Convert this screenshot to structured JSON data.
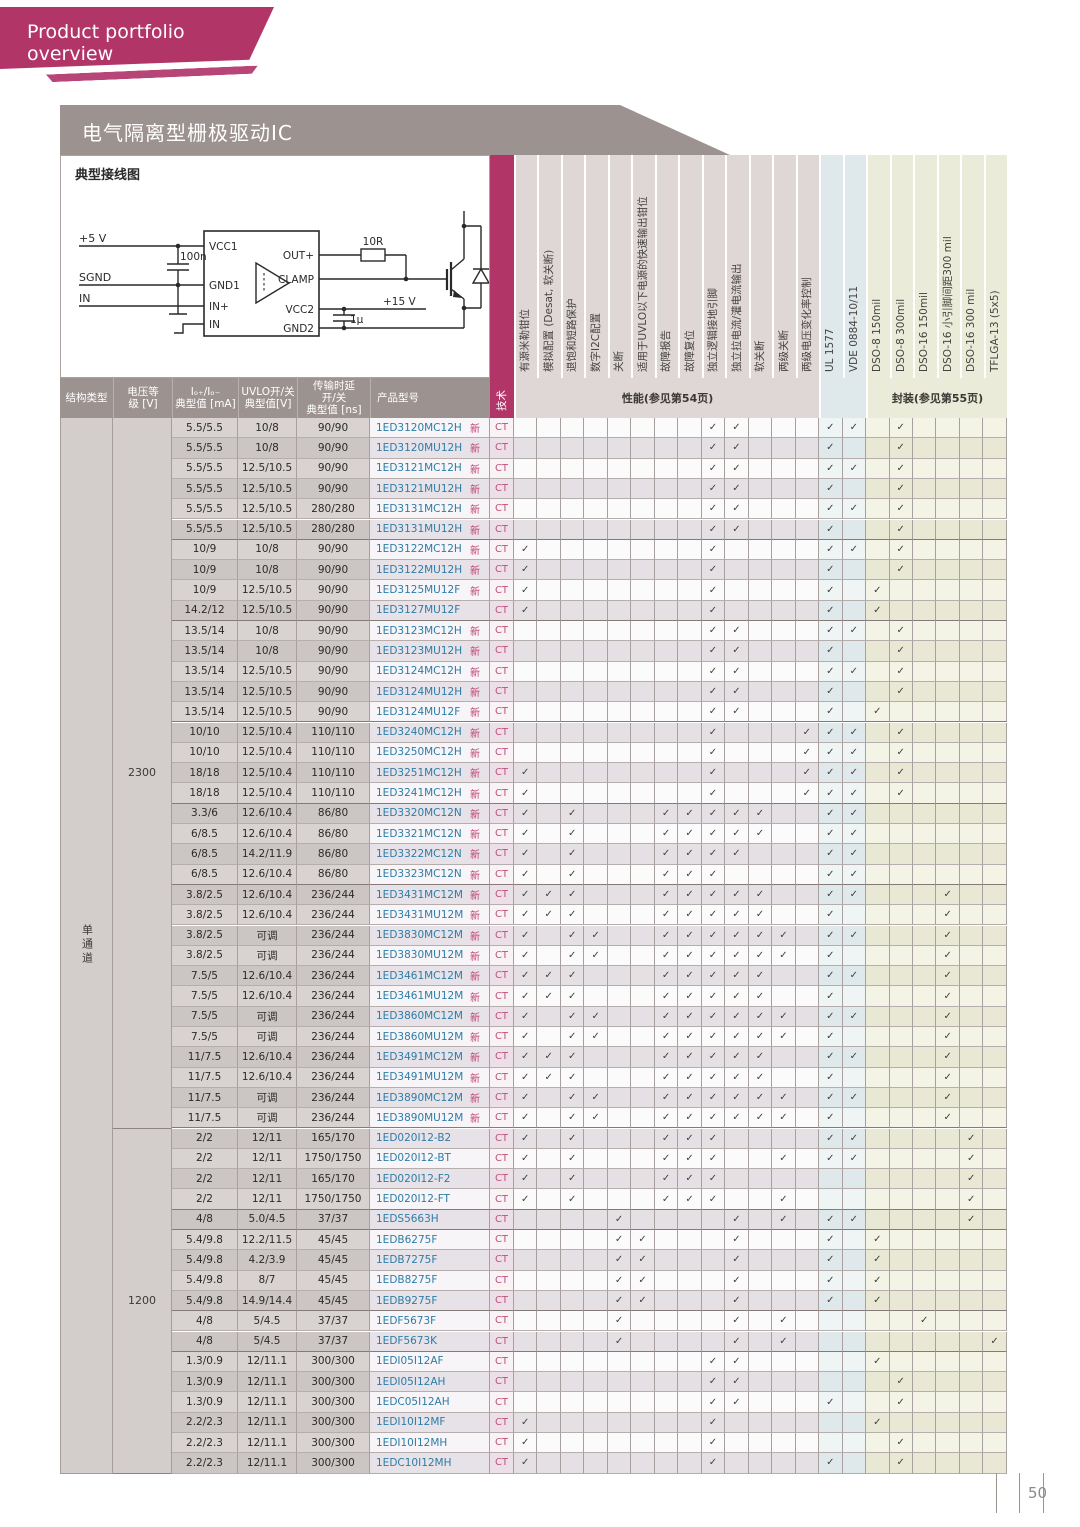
{
  "page": {
    "number": "50"
  },
  "banner": {
    "title": "Product portfolio overview"
  },
  "section": {
    "title": "电气隔离型栅极驱动IC"
  },
  "colors": {
    "brand_magenta": "#b23568",
    "header_gray": "#9c9290",
    "product_link_blue": "#2e7ca6",
    "new_badge": "#c2406f",
    "cert_header_blue": "#dfe9eb",
    "package_header_yellow": "#ebebd9"
  },
  "diagram": {
    "title": "典型接线图",
    "labels": {
      "supply5": "+5 V",
      "sgnd": "SGND",
      "input": "IN",
      "c1": "100n",
      "vcc1": "VCC1",
      "gnd1": "GND1",
      "inp": "IN+",
      "inn": "IN",
      "outp": "OUT+",
      "clamp": "CLAMP",
      "vcc2": "VCC2",
      "gnd2": "GND2",
      "r1": "10R",
      "supply15": "+15 V",
      "c2": "1µ"
    }
  },
  "table": {
    "left_headers": [
      {
        "lines": [
          "结构类型"
        ]
      },
      {
        "lines": [
          "电压等",
          "级 [V]"
        ]
      },
      {
        "lines": [
          "Iₒ₊/Iₒ₋",
          "典型值 [mA]"
        ]
      },
      {
        "lines": [
          "UVLO开/关",
          "典型值[V]"
        ]
      },
      {
        "lines": [
          "传输时延",
          "开/关",
          "典型值 [ns]"
        ]
      },
      {
        "lines": [
          "产品型号"
        ]
      }
    ],
    "tech_header": "技术",
    "tech_value": "CT",
    "new_label": "新",
    "perf_band": "性能(参见第54页)",
    "pkg_band": "封装(参见第55页)",
    "structure_group": "单通道",
    "voltage_groups": [
      {
        "label": "2300",
        "rows": 35
      },
      {
        "label": "1200",
        "rows": 17
      }
    ],
    "columns": [
      {
        "label": "有源米勒钳位",
        "group": "perf"
      },
      {
        "label": "模拟配置 (Desat, 软关断)",
        "group": "perf"
      },
      {
        "label": "退饱和短路保护",
        "group": "perf"
      },
      {
        "label": "数字I2C配置",
        "group": "perf"
      },
      {
        "label": "关断",
        "group": "perf"
      },
      {
        "label": "适用于UVLO以下电源的快速输出钳位",
        "group": "perf"
      },
      {
        "label": "故障报告",
        "group": "perf"
      },
      {
        "label": "故障复位",
        "group": "perf"
      },
      {
        "label": "独立逻辑接地引脚",
        "group": "perf"
      },
      {
        "label": "独立拉电流/灌电流输出",
        "group": "perf"
      },
      {
        "label": "软关断",
        "group": "perf"
      },
      {
        "label": "两级关断",
        "group": "perf"
      },
      {
        "label": "两级电压变化率控制",
        "group": "perf"
      },
      {
        "label": "UL 1577",
        "group": "cert"
      },
      {
        "label": "VDE 0884-10/11",
        "group": "cert"
      },
      {
        "label": "DSO-8 150mil",
        "group": "pkg"
      },
      {
        "label": "DSO-8 300mil",
        "group": "pkg"
      },
      {
        "label": "DSO-16 150mil",
        "group": "pkg"
      },
      {
        "label": "DSO-16 小引脚间距300 mil",
        "group": "pkg"
      },
      {
        "label": "DSO-16 300 mil",
        "group": "pkg"
      },
      {
        "label": "TFLGA-13 (5x5)",
        "group": "pkg"
      }
    ],
    "rows": [
      {
        "io": "5.5/5.5",
        "uvlo": "10/8",
        "td": "90/90",
        "part": "1ED3120MC12H",
        "new": true,
        "chk": [
          9,
          10,
          14,
          15,
          17
        ]
      },
      {
        "io": "5.5/5.5",
        "uvlo": "10/8",
        "td": "90/90",
        "part": "1ED3120MU12H",
        "new": true,
        "chk": [
          9,
          10,
          14,
          17
        ]
      },
      {
        "io": "5.5/5.5",
        "uvlo": "12.5/10.5",
        "td": "90/90",
        "part": "1ED3121MC12H",
        "new": true,
        "chk": [
          9,
          10,
          14,
          15,
          17
        ]
      },
      {
        "io": "5.5/5.5",
        "uvlo": "12.5/10.5",
        "td": "90/90",
        "part": "1ED3121MU12H",
        "new": true,
        "chk": [
          9,
          10,
          14,
          17
        ]
      },
      {
        "io": "5.5/5.5",
        "uvlo": "12.5/10.5",
        "td": "280/280",
        "part": "1ED3131MC12H",
        "new": true,
        "chk": [
          9,
          10,
          14,
          15,
          17
        ]
      },
      {
        "io": "5.5/5.5",
        "uvlo": "12.5/10.5",
        "td": "280/280",
        "part": "1ED3131MU12H",
        "new": true,
        "chk": [
          9,
          10,
          14,
          17
        ]
      },
      {
        "io": "10/9",
        "uvlo": "10/8",
        "td": "90/90",
        "part": "1ED3122MC12H",
        "new": true,
        "chk": [
          1,
          9,
          14,
          15,
          17
        ]
      },
      {
        "io": "10/9",
        "uvlo": "10/8",
        "td": "90/90",
        "part": "1ED3122MU12H",
        "new": true,
        "chk": [
          1,
          9,
          14,
          17
        ]
      },
      {
        "io": "10/9",
        "uvlo": "12.5/10.5",
        "td": "90/90",
        "part": "1ED3125MU12F",
        "new": true,
        "chk": [
          1,
          9,
          14,
          16
        ]
      },
      {
        "io": "14.2/12",
        "uvlo": "12.5/10.5",
        "td": "90/90",
        "part": "1ED3127MU12F",
        "new": false,
        "chk": [
          1,
          9,
          14,
          16
        ]
      },
      {
        "io": "13.5/14",
        "uvlo": "10/8",
        "td": "90/90",
        "part": "1ED3123MC12H",
        "new": true,
        "chk": [
          9,
          10,
          14,
          15,
          17
        ]
      },
      {
        "io": "13.5/14",
        "uvlo": "10/8",
        "td": "90/90",
        "part": "1ED3123MU12H",
        "new": true,
        "chk": [
          9,
          10,
          14,
          17
        ]
      },
      {
        "io": "13.5/14",
        "uvlo": "12.5/10.5",
        "td": "90/90",
        "part": "1ED3124MC12H",
        "new": true,
        "chk": [
          9,
          10,
          14,
          15,
          17
        ]
      },
      {
        "io": "13.5/14",
        "uvlo": "12.5/10.5",
        "td": "90/90",
        "part": "1ED3124MU12H",
        "new": true,
        "chk": [
          9,
          10,
          14,
          17
        ]
      },
      {
        "io": "13.5/14",
        "uvlo": "12.5/10.5",
        "td": "90/90",
        "part": "1ED3124MU12F",
        "new": true,
        "chk": [
          9,
          10,
          14,
          16
        ]
      },
      {
        "io": "10/10",
        "uvlo": "12.5/10.4",
        "td": "110/110",
        "part": "1ED3240MC12H",
        "new": true,
        "chk": [
          9,
          13,
          14,
          15,
          17
        ]
      },
      {
        "io": "10/10",
        "uvlo": "12.5/10.4",
        "td": "110/110",
        "part": "1ED3250MC12H",
        "new": true,
        "chk": [
          9,
          13,
          14,
          15,
          17
        ]
      },
      {
        "io": "18/18",
        "uvlo": "12.5/10.4",
        "td": "110/110",
        "part": "1ED3251MC12H",
        "new": true,
        "chk": [
          1,
          9,
          13,
          14,
          15,
          17
        ]
      },
      {
        "io": "18/18",
        "uvlo": "12.5/10.4",
        "td": "110/110",
        "part": "1ED3241MC12H",
        "new": true,
        "chk": [
          1,
          9,
          13,
          14,
          15,
          17
        ]
      },
      {
        "io": "3.3/6",
        "uvlo": "12.6/10.4",
        "td": "86/80",
        "part": "1ED3320MC12N",
        "new": true,
        "chk": [
          1,
          3,
          7,
          8,
          9,
          10,
          11,
          14,
          15
        ]
      },
      {
        "io": "6/8.5",
        "uvlo": "12.6/10.4",
        "td": "86/80",
        "part": "1ED3321MC12N",
        "new": true,
        "chk": [
          1,
          3,
          7,
          8,
          9,
          10,
          11,
          14,
          15
        ]
      },
      {
        "io": "6/8.5",
        "uvlo": "14.2/11.9",
        "td": "86/80",
        "part": "1ED3322MC12N",
        "new": true,
        "chk": [
          1,
          3,
          7,
          8,
          9,
          10,
          14,
          15
        ]
      },
      {
        "io": "6/8.5",
        "uvlo": "12.6/10.4",
        "td": "86/80",
        "part": "1ED3323MC12N",
        "new": true,
        "chk": [
          1,
          3,
          7,
          8,
          9,
          14,
          15
        ]
      },
      {
        "io": "3.8/2.5",
        "uvlo": "12.6/10.4",
        "td": "236/244",
        "part": "1ED3431MC12M",
        "new": true,
        "chk": [
          1,
          2,
          3,
          7,
          8,
          9,
          10,
          11,
          14,
          15,
          19
        ]
      },
      {
        "io": "3.8/2.5",
        "uvlo": "12.6/10.4",
        "td": "236/244",
        "part": "1ED3431MU12M",
        "new": true,
        "chk": [
          1,
          2,
          3,
          7,
          8,
          9,
          10,
          11,
          14,
          19
        ]
      },
      {
        "io": "3.8/2.5",
        "uvlo": "可调",
        "td": "236/244",
        "part": "1ED3830MC12M",
        "new": true,
        "chk": [
          1,
          3,
          4,
          7,
          8,
          9,
          10,
          11,
          12,
          14,
          15,
          19
        ]
      },
      {
        "io": "3.8/2.5",
        "uvlo": "可调",
        "td": "236/244",
        "part": "1ED3830MU12M",
        "new": true,
        "chk": [
          1,
          3,
          4,
          7,
          8,
          9,
          10,
          11,
          12,
          14,
          19
        ]
      },
      {
        "io": "7.5/5",
        "uvlo": "12.6/10.4",
        "td": "236/244",
        "part": "1ED3461MC12M",
        "new": true,
        "chk": [
          1,
          2,
          3,
          7,
          8,
          9,
          10,
          11,
          14,
          15,
          19
        ]
      },
      {
        "io": "7.5/5",
        "uvlo": "12.6/10.4",
        "td": "236/244",
        "part": "1ED3461MU12M",
        "new": true,
        "chk": [
          1,
          2,
          3,
          7,
          8,
          9,
          10,
          11,
          14,
          19
        ]
      },
      {
        "io": "7.5/5",
        "uvlo": "可调",
        "td": "236/244",
        "part": "1ED3860MC12M",
        "new": true,
        "chk": [
          1,
          3,
          4,
          7,
          8,
          9,
          10,
          11,
          12,
          14,
          15,
          19
        ]
      },
      {
        "io": "7.5/5",
        "uvlo": "可调",
        "td": "236/244",
        "part": "1ED3860MU12M",
        "new": true,
        "chk": [
          1,
          3,
          4,
          7,
          8,
          9,
          10,
          11,
          12,
          14,
          19
        ]
      },
      {
        "io": "11/7.5",
        "uvlo": "12.6/10.4",
        "td": "236/244",
        "part": "1ED3491MC12M",
        "new": true,
        "chk": [
          1,
          2,
          3,
          7,
          8,
          9,
          10,
          11,
          14,
          15,
          19
        ]
      },
      {
        "io": "11/7.5",
        "uvlo": "12.6/10.4",
        "td": "236/244",
        "part": "1ED3491MU12M",
        "new": true,
        "chk": [
          1,
          2,
          3,
          7,
          8,
          9,
          10,
          11,
          14,
          19
        ]
      },
      {
        "io": "11/7.5",
        "uvlo": "可调",
        "td": "236/244",
        "part": "1ED3890MC12M",
        "new": true,
        "chk": [
          1,
          3,
          4,
          7,
          8,
          9,
          10,
          11,
          12,
          14,
          15,
          19
        ]
      },
      {
        "io": "11/7.5",
        "uvlo": "可调",
        "td": "236/244",
        "part": "1ED3890MU12M",
        "new": true,
        "chk": [
          1,
          3,
          4,
          7,
          8,
          9,
          10,
          11,
          12,
          14,
          19
        ]
      },
      {
        "io": "2/2",
        "uvlo": "12/11",
        "td": "165/170",
        "part": "1ED020I12-B2",
        "new": false,
        "chk": [
          1,
          3,
          7,
          8,
          9,
          14,
          15,
          20
        ]
      },
      {
        "io": "2/2",
        "uvlo": "12/11",
        "td": "1750/1750",
        "part": "1ED020I12-BT",
        "new": false,
        "chk": [
          1,
          3,
          7,
          8,
          9,
          12,
          14,
          15,
          20
        ]
      },
      {
        "io": "2/2",
        "uvlo": "12/11",
        "td": "165/170",
        "part": "1ED020I12-F2",
        "new": false,
        "chk": [
          1,
          3,
          7,
          8,
          9,
          20
        ]
      },
      {
        "io": "2/2",
        "uvlo": "12/11",
        "td": "1750/1750",
        "part": "1ED020I12-FT",
        "new": false,
        "chk": [
          1,
          3,
          7,
          8,
          9,
          12,
          20
        ]
      },
      {
        "io": "4/8",
        "uvlo": "5.0/4.5",
        "td": "37/37",
        "part": "1EDS5663H",
        "new": false,
        "chk": [
          5,
          10,
          12,
          14,
          15,
          20
        ]
      },
      {
        "io": "5.4/9.8",
        "uvlo": "12.2/11.5",
        "td": "45/45",
        "part": "1EDB6275F",
        "new": false,
        "chk": [
          5,
          6,
          10,
          14,
          16
        ]
      },
      {
        "io": "5.4/9.8",
        "uvlo": "4.2/3.9",
        "td": "45/45",
        "part": "1EDB7275F",
        "new": false,
        "chk": [
          5,
          6,
          10,
          14,
          16
        ]
      },
      {
        "io": "5.4/9.8",
        "uvlo": "8/7",
        "td": "45/45",
        "part": "1EDB8275F",
        "new": false,
        "chk": [
          5,
          6,
          10,
          14,
          16
        ]
      },
      {
        "io": "5.4/9.8",
        "uvlo": "14.9/14.4",
        "td": "45/45",
        "part": "1EDB9275F",
        "new": false,
        "chk": [
          5,
          6,
          10,
          14,
          16
        ]
      },
      {
        "io": "4/8",
        "uvlo": "5/4.5",
        "td": "37/37",
        "part": "1EDF5673F",
        "new": false,
        "chk": [
          5,
          10,
          12,
          18
        ]
      },
      {
        "io": "4/8",
        "uvlo": "5/4.5",
        "td": "37/37",
        "part": "1EDF5673K",
        "new": false,
        "chk": [
          5,
          10,
          12,
          21
        ]
      },
      {
        "io": "1.3/0.9",
        "uvlo": "12/11.1",
        "td": "300/300",
        "part": "1EDI05I12AF",
        "new": false,
        "chk": [
          9,
          10,
          16
        ]
      },
      {
        "io": "1.3/0.9",
        "uvlo": "12/11.1",
        "td": "300/300",
        "part": "1EDI05I12AH",
        "new": false,
        "chk": [
          9,
          10,
          17
        ]
      },
      {
        "io": "1.3/0.9",
        "uvlo": "12/11.1",
        "td": "300/300",
        "part": "1EDC05I12AH",
        "new": false,
        "chk": [
          9,
          10,
          14,
          17
        ]
      },
      {
        "io": "2.2/2.3",
        "uvlo": "12/11.1",
        "td": "300/300",
        "part": "1EDI10I12MF",
        "new": false,
        "chk": [
          1,
          9,
          16
        ]
      },
      {
        "io": "2.2/2.3",
        "uvlo": "12/11.1",
        "td": "300/300",
        "part": "1EDI10I12MH",
        "new": false,
        "chk": [
          1,
          9,
          17
        ]
      },
      {
        "io": "2.2/2.3",
        "uvlo": "12/11.1",
        "td": "300/300",
        "part": "1EDC10I12MH",
        "new": false,
        "chk": [
          1,
          9,
          14,
          17
        ]
      }
    ]
  }
}
